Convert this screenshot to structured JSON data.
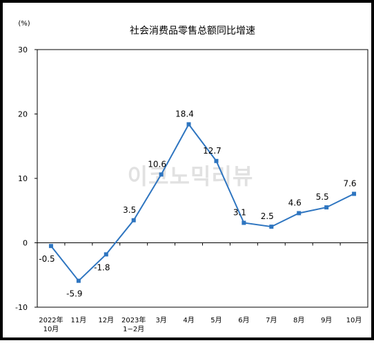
{
  "chart_data": {
    "type": "line",
    "title": "社会消费品零售总额同比增速",
    "unit_label": "(%)",
    "categories": [
      [
        "2022年",
        "10月"
      ],
      [
        "11月"
      ],
      [
        "12月"
      ],
      [
        "2023年",
        "1−2月"
      ],
      [
        "3月"
      ],
      [
        "4月"
      ],
      [
        "5月"
      ],
      [
        "6月"
      ],
      [
        "7月"
      ],
      [
        "8月"
      ],
      [
        "9月"
      ],
      [
        "10月"
      ]
    ],
    "values": [
      -0.5,
      -5.9,
      -1.8,
      3.5,
      10.6,
      18.4,
      12.7,
      3.1,
      2.5,
      4.6,
      5.5,
      7.6
    ],
    "data_labels": [
      "-0.5",
      "-5.9",
      "-1.8",
      "3.5",
      "10.6",
      "18.4",
      "12.7",
      "3.1",
      "2.5",
      "4.6",
      "5.5",
      "7.6"
    ],
    "yticks": [
      -10,
      0,
      10,
      20,
      30
    ],
    "ylim": [
      -10,
      30
    ],
    "grid": false,
    "series_color": "#2e75c0",
    "watermark": "이코노믹리뷰"
  }
}
